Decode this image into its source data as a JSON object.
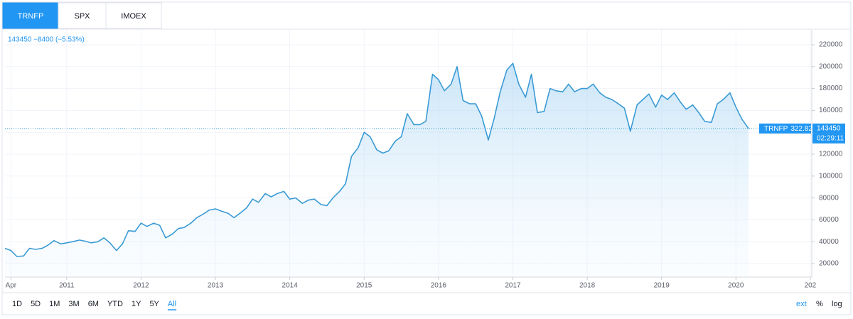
{
  "tabs": [
    "TRNFP",
    "SPX",
    "IMOEX"
  ],
  "legend": "143450 −8400 (−5.53%)",
  "price_label": {
    "name": "TRNFP",
    "change": "322.82%",
    "value": "143450",
    "time": "02:29:11"
  },
  "ranges": [
    "1D",
    "5D",
    "1M",
    "3M",
    "6M",
    "YTD",
    "1Y",
    "5Y",
    "All"
  ],
  "options": [
    "ext",
    "%",
    "log"
  ],
  "chart_data": {
    "type": "line",
    "color": "#3a9bd5",
    "grid": true,
    "x": [
      2010.17,
      2010.25,
      2010.33,
      2010.42,
      2010.5,
      2010.58,
      2010.67,
      2010.75,
      2010.83,
      2010.92,
      2011.0,
      2011.08,
      2011.17,
      2011.25,
      2011.33,
      2011.42,
      2011.5,
      2011.58,
      2011.67,
      2011.75,
      2011.83,
      2011.92,
      2012.0,
      2012.08,
      2012.17,
      2012.25,
      2012.33,
      2012.42,
      2012.5,
      2012.58,
      2012.67,
      2012.75,
      2012.83,
      2012.92,
      2013.0,
      2013.08,
      2013.17,
      2013.25,
      2013.33,
      2013.42,
      2013.5,
      2013.58,
      2013.67,
      2013.75,
      2013.83,
      2013.92,
      2014.0,
      2014.08,
      2014.17,
      2014.25,
      2014.33,
      2014.42,
      2014.5,
      2014.58,
      2014.67,
      2014.75,
      2014.83,
      2014.92,
      2015.0,
      2015.08,
      2015.17,
      2015.25,
      2015.33,
      2015.42,
      2015.5,
      2015.58,
      2015.67,
      2015.75,
      2015.83,
      2015.92,
      2016.0,
      2016.08,
      2016.17,
      2016.25,
      2016.33,
      2016.42,
      2016.5,
      2016.58,
      2016.67,
      2016.75,
      2016.83,
      2016.92,
      2017.0,
      2017.08,
      2017.17,
      2017.25,
      2017.33,
      2017.42,
      2017.5,
      2017.58,
      2017.67,
      2017.75,
      2017.83,
      2017.92,
      2018.0,
      2018.08,
      2018.17,
      2018.25,
      2018.33,
      2018.42,
      2018.5,
      2018.58,
      2018.67,
      2018.75,
      2018.83,
      2018.92,
      2019.0,
      2019.08,
      2019.17,
      2019.25,
      2019.33,
      2019.42,
      2019.5,
      2019.58,
      2019.67,
      2019.75,
      2019.83,
      2019.92,
      2020.0,
      2020.08,
      2020.17
    ],
    "values": [
      34000,
      32000,
      26500,
      27000,
      34000,
      33000,
      34000,
      37000,
      41000,
      38000,
      39000,
      40000,
      41500,
      40500,
      39000,
      40000,
      43500,
      39000,
      32000,
      38000,
      50000,
      49500,
      57000,
      54000,
      57000,
      55000,
      43500,
      47000,
      52000,
      53000,
      57000,
      62000,
      65000,
      69000,
      70000,
      68000,
      66000,
      62000,
      66000,
      71000,
      79000,
      76000,
      84000,
      81000,
      84000,
      86000,
      79000,
      80000,
      75000,
      78000,
      79000,
      74000,
      73000,
      80000,
      86000,
      93000,
      118000,
      126000,
      140000,
      136000,
      124000,
      121000,
      123000,
      132000,
      136000,
      157000,
      147000,
      147000,
      150000,
      193000,
      188000,
      178000,
      184000,
      200000,
      169000,
      166000,
      166000,
      155000,
      133000,
      153000,
      177000,
      197000,
      203000,
      184000,
      172000,
      193000,
      158000,
      159000,
      180000,
      178000,
      177000,
      184000,
      177000,
      180000,
      180000,
      184000,
      176000,
      172000,
      170000,
      166000,
      162000,
      141000,
      165000,
      170000,
      175000,
      163000,
      174000,
      170000,
      176000,
      168000,
      161000,
      165000,
      158000,
      150000,
      149000,
      166000,
      170000,
      176000,
      163000,
      152000,
      143450
    ],
    "xlim": [
      2010.17,
      2021.02
    ],
    "xticks": [
      {
        "value": 2010.25,
        "label": "Apr"
      },
      2011,
      2012,
      2013,
      2014,
      2015,
      2016,
      2017,
      2018,
      2019,
      2020,
      {
        "value": 2021,
        "label": "202"
      }
    ],
    "ylim": [
      7700,
      233600
    ],
    "yticks": [
      20000,
      40000,
      60000,
      80000,
      100000,
      120000,
      140000,
      160000,
      180000,
      200000,
      220000
    ]
  }
}
